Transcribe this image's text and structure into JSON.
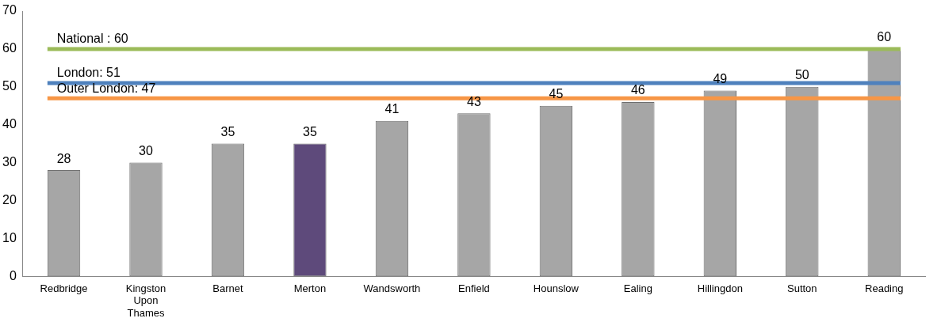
{
  "chart_data": {
    "type": "bar",
    "categories": [
      "Redbridge",
      "Kingston Upon Thames",
      "Barnet",
      "Merton",
      "Wandsworth",
      "Enfield",
      "Hounslow",
      "Ealing",
      "Hillingdon",
      "Sutton",
      "Reading"
    ],
    "values": [
      28,
      30,
      35,
      35,
      41,
      43,
      45,
      46,
      49,
      50,
      60
    ],
    "colors": [
      "#a6a6a6",
      "#a6a6a6",
      "#a6a6a6",
      "#5e4a7b",
      "#a6a6a6",
      "#a6a6a6",
      "#a6a6a6",
      "#a6a6a6",
      "#a6a6a6",
      "#a6a6a6",
      "#a6a6a6"
    ],
    "ylim": [
      0,
      70
    ],
    "yticks": [
      0,
      10,
      20,
      30,
      40,
      50,
      60,
      70
    ],
    "grid": false,
    "legend": false,
    "data_labels": true,
    "ref_lines": [
      {
        "axis": "y",
        "value": 60,
        "label": "National : 60",
        "color": "#9bbb59"
      },
      {
        "axis": "y",
        "value": 51,
        "label": "London: 51",
        "color": "#4f81bd"
      },
      {
        "axis": "y",
        "value": 47,
        "label": "Outer London: 47",
        "color": "#f79646"
      }
    ]
  }
}
